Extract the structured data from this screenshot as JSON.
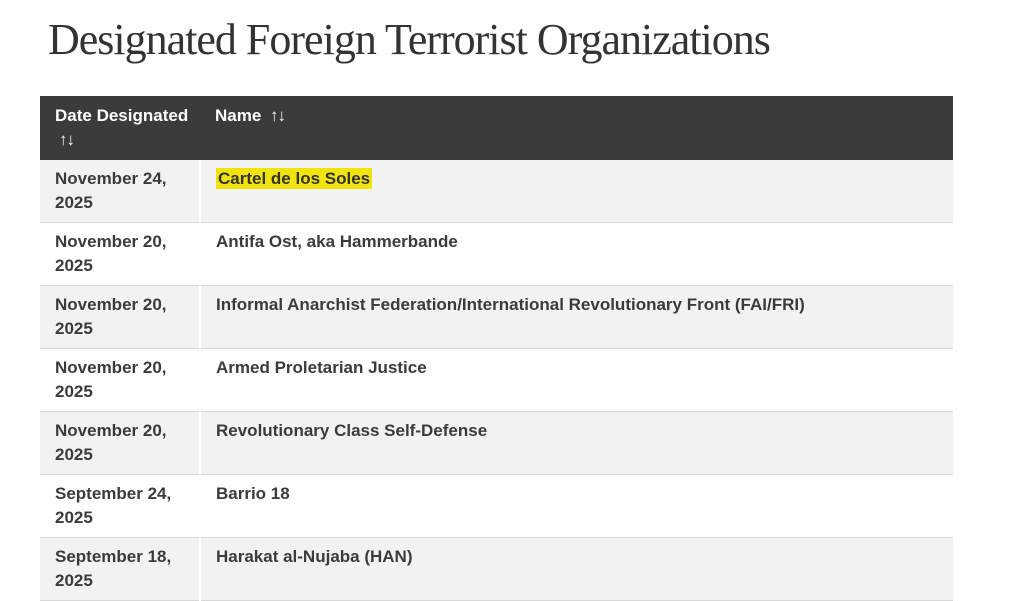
{
  "page": {
    "title": "Designated Foreign Terrorist Organizations"
  },
  "table": {
    "columns": [
      {
        "label": "Date Designated",
        "sort_icon": "↑↓"
      },
      {
        "label": "Name",
        "sort_icon": "↑↓"
      }
    ],
    "rows": [
      {
        "date": "November 24, 2025",
        "name": "Cartel de los Soles",
        "highlighted": true
      },
      {
        "date": "November 20, 2025",
        "name": "Antifa Ost, aka Hammerbande",
        "highlighted": false
      },
      {
        "date": "November 20, 2025",
        "name": "Informal Anarchist Federation/International Revolutionary Front (FAI/FRI)",
        "highlighted": false
      },
      {
        "date": "November 20, 2025",
        "name": "Armed Proletarian Justice",
        "highlighted": false
      },
      {
        "date": "November 20, 2025",
        "name": "Revolutionary Class Self-Defense",
        "highlighted": false
      },
      {
        "date": "September 24, 2025",
        "name": "Barrio 18",
        "highlighted": false
      },
      {
        "date": "September 18, 2025",
        "name": "Harakat al-Nujaba (HAN)",
        "highlighted": false
      }
    ]
  },
  "colors": {
    "header_bg": "#3b3b3b",
    "header_text": "#ffffff",
    "row_alt_bg": "#f2f2f2",
    "row_bg": "#ffffff",
    "row_border": "#d8d8d8",
    "cell_text": "#3b3b3b",
    "highlight_bg": "#f1e40e",
    "title_text": "#333333"
  }
}
